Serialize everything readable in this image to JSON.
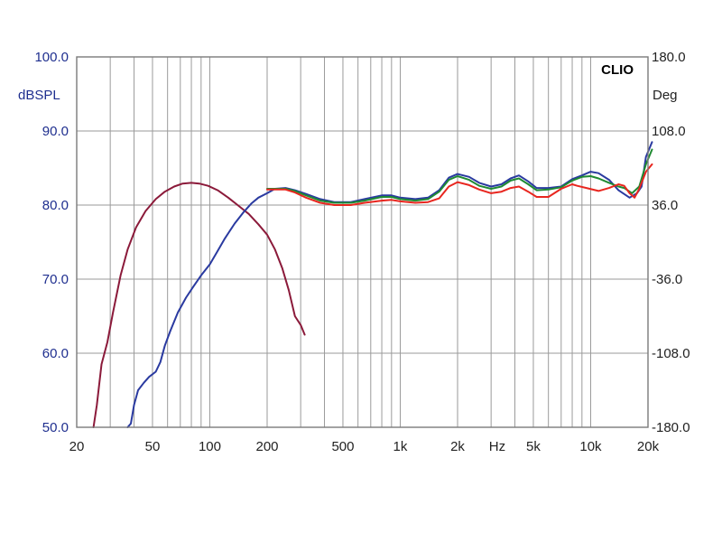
{
  "chart_data": {
    "type": "line",
    "brand": "CLIO",
    "x_scale": "log",
    "x_unit_label": "Hz",
    "left_axis": {
      "unit": "dBSPL",
      "ylim": [
        50,
        100
      ],
      "ticks": [
        {
          "v": 100,
          "label": "100.0"
        },
        {
          "v": 90,
          "label": "90.0"
        },
        {
          "v": 80,
          "label": "80.0"
        },
        {
          "v": 70,
          "label": "70.0"
        },
        {
          "v": 60,
          "label": "60.0"
        },
        {
          "v": 50,
          "label": "50.0"
        }
      ]
    },
    "right_axis": {
      "unit": "Deg",
      "ylim": [
        -180,
        180
      ],
      "ticks": [
        {
          "v": 180,
          "label": "180.0"
        },
        {
          "v": 108,
          "label": "108.0"
        },
        {
          "v": 36,
          "label": "36.0"
        },
        {
          "v": -36,
          "label": "-36.0"
        },
        {
          "v": -108,
          "label": "-108.0"
        },
        {
          "v": -180,
          "label": "-180.0"
        }
      ]
    },
    "xlim": [
      20,
      20000
    ],
    "x_ticks": [
      {
        "v": 20,
        "label": "20"
      },
      {
        "v": 50,
        "label": "50"
      },
      {
        "v": 100,
        "label": "100"
      },
      {
        "v": 200,
        "label": "200"
      },
      {
        "v": 500,
        "label": "500"
      },
      {
        "v": 1000,
        "label": "1k"
      },
      {
        "v": 2000,
        "label": "2k"
      },
      {
        "v": 5000,
        "label": "5k"
      },
      {
        "v": 10000,
        "label": "10k"
      },
      {
        "v": 20000,
        "label": "20k"
      }
    ],
    "grid": true,
    "series": [
      {
        "color": "#8b1a3a",
        "points": [
          [
            24.5,
            50
          ],
          [
            25.5,
            53
          ],
          [
            27,
            58.5
          ],
          [
            29,
            61.5
          ],
          [
            31,
            65.5
          ],
          [
            34,
            70.5
          ],
          [
            37,
            74
          ],
          [
            41,
            77
          ],
          [
            46,
            79.2
          ],
          [
            52,
            80.8
          ],
          [
            58,
            81.8
          ],
          [
            65,
            82.5
          ],
          [
            72,
            82.9
          ],
          [
            80,
            83
          ],
          [
            88,
            82.9
          ],
          [
            98,
            82.6
          ],
          [
            110,
            82
          ],
          [
            125,
            81
          ],
          [
            140,
            80
          ],
          [
            160,
            78.8
          ],
          [
            180,
            77.4
          ],
          [
            200,
            76
          ],
          [
            220,
            74
          ],
          [
            240,
            71.5
          ],
          [
            260,
            68.5
          ],
          [
            280,
            65
          ],
          [
            300,
            63.8
          ],
          [
            315,
            62.5
          ]
        ]
      },
      {
        "color": "#2a3aa0",
        "points": [
          [
            37,
            50
          ],
          [
            38.5,
            50.5
          ],
          [
            40,
            53
          ],
          [
            42,
            55
          ],
          [
            45,
            56
          ],
          [
            48,
            56.8
          ],
          [
            52,
            57.5
          ],
          [
            55,
            58.8
          ],
          [
            58,
            61
          ],
          [
            62,
            63
          ],
          [
            68,
            65.5
          ],
          [
            75,
            67.5
          ],
          [
            82,
            69
          ],
          [
            90,
            70.5
          ],
          [
            100,
            72
          ],
          [
            110,
            73.8
          ],
          [
            120,
            75.5
          ],
          [
            135,
            77.5
          ],
          [
            150,
            79
          ],
          [
            165,
            80.2
          ],
          [
            180,
            81
          ],
          [
            200,
            81.6
          ],
          [
            220,
            82.2
          ],
          [
            250,
            82.3
          ],
          [
            280,
            82
          ],
          [
            320,
            81.5
          ],
          [
            380,
            80.8
          ],
          [
            450,
            80.4
          ],
          [
            550,
            80.4
          ],
          [
            650,
            80.8
          ],
          [
            800,
            81.3
          ],
          [
            900,
            81.3
          ],
          [
            1000,
            81
          ],
          [
            1200,
            80.8
          ],
          [
            1400,
            81
          ],
          [
            1600,
            82
          ],
          [
            1800,
            83.7
          ],
          [
            2000,
            84.2
          ],
          [
            2300,
            83.8
          ],
          [
            2600,
            83
          ],
          [
            3000,
            82.5
          ],
          [
            3400,
            82.8
          ],
          [
            3800,
            83.6
          ],
          [
            4200,
            84
          ],
          [
            4700,
            83.2
          ],
          [
            5200,
            82.3
          ],
          [
            6000,
            82.3
          ],
          [
            7000,
            82.5
          ],
          [
            8000,
            83.5
          ],
          [
            9000,
            84
          ],
          [
            10000,
            84.5
          ],
          [
            11000,
            84.3
          ],
          [
            12500,
            83.4
          ],
          [
            14000,
            82
          ],
          [
            16000,
            81
          ],
          [
            17500,
            81.6
          ],
          [
            18500,
            82.5
          ],
          [
            19500,
            86.5
          ],
          [
            21000,
            88.5
          ]
        ]
      },
      {
        "color": "#1f8a32",
        "points": [
          [
            200,
            82.2
          ],
          [
            220,
            82.2
          ],
          [
            250,
            82.2
          ],
          [
            280,
            81.9
          ],
          [
            320,
            81.3
          ],
          [
            380,
            80.6
          ],
          [
            450,
            80.3
          ],
          [
            550,
            80.3
          ],
          [
            650,
            80.6
          ],
          [
            800,
            81.1
          ],
          [
            900,
            81.1
          ],
          [
            1000,
            80.8
          ],
          [
            1200,
            80.6
          ],
          [
            1400,
            80.8
          ],
          [
            1600,
            81.8
          ],
          [
            1800,
            83.4
          ],
          [
            2000,
            83.9
          ],
          [
            2300,
            83.4
          ],
          [
            2600,
            82.6
          ],
          [
            3000,
            82.2
          ],
          [
            3400,
            82.5
          ],
          [
            3800,
            83.3
          ],
          [
            4200,
            83.6
          ],
          [
            4700,
            82.8
          ],
          [
            5200,
            82
          ],
          [
            6000,
            82.1
          ],
          [
            7000,
            82.4
          ],
          [
            8000,
            83.3
          ],
          [
            9000,
            83.8
          ],
          [
            10000,
            83.9
          ],
          [
            11000,
            83.6
          ],
          [
            12500,
            83
          ],
          [
            14000,
            82.5
          ],
          [
            15000,
            82.3
          ],
          [
            16500,
            81.6
          ],
          [
            18000,
            82.5
          ],
          [
            19500,
            85.5
          ],
          [
            21000,
            87.5
          ]
        ]
      },
      {
        "color": "#e8261f",
        "points": [
          [
            200,
            82.1
          ],
          [
            220,
            82.1
          ],
          [
            250,
            82.1
          ],
          [
            280,
            81.7
          ],
          [
            320,
            81
          ],
          [
            380,
            80.3
          ],
          [
            450,
            80
          ],
          [
            550,
            80
          ],
          [
            650,
            80.3
          ],
          [
            800,
            80.6
          ],
          [
            900,
            80.7
          ],
          [
            1000,
            80.5
          ],
          [
            1200,
            80.3
          ],
          [
            1400,
            80.4
          ],
          [
            1600,
            80.9
          ],
          [
            1800,
            82.5
          ],
          [
            2000,
            83.1
          ],
          [
            2300,
            82.7
          ],
          [
            2600,
            82.1
          ],
          [
            3000,
            81.6
          ],
          [
            3400,
            81.8
          ],
          [
            3800,
            82.3
          ],
          [
            4200,
            82.5
          ],
          [
            4700,
            81.8
          ],
          [
            5200,
            81.1
          ],
          [
            6000,
            81.1
          ],
          [
            7000,
            82.2
          ],
          [
            8000,
            82.8
          ],
          [
            8500,
            82.6
          ],
          [
            9500,
            82.3
          ],
          [
            11000,
            81.9
          ],
          [
            12500,
            82.3
          ],
          [
            14000,
            82.8
          ],
          [
            15000,
            82.6
          ],
          [
            16000,
            81.6
          ],
          [
            17000,
            81
          ],
          [
            18000,
            82.2
          ],
          [
            19500,
            84.5
          ],
          [
            21000,
            85.5
          ]
        ]
      }
    ]
  }
}
